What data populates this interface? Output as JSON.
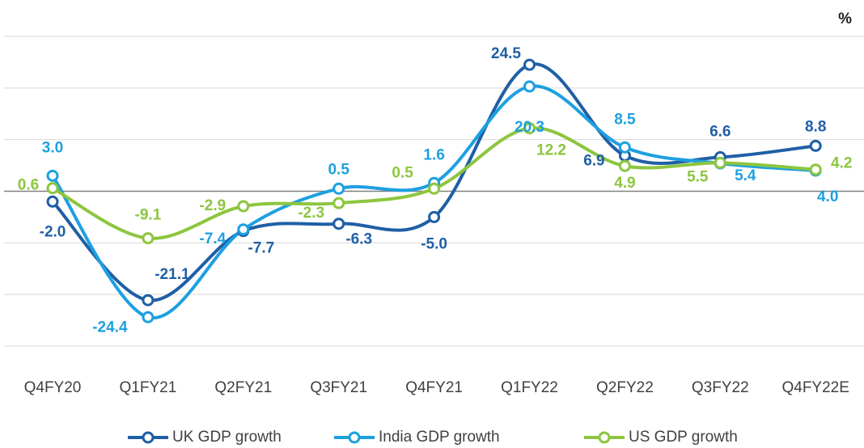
{
  "chart_data": {
    "type": "line",
    "y_label": "%",
    "categories": [
      "Q4FY20",
      "Q1FY21",
      "Q2FY21",
      "Q3FY21",
      "Q4FY21",
      "Q1FY22",
      "Q2FY22",
      "Q3FY22",
      "Q4FY22E"
    ],
    "series": [
      {
        "name": "UK GDP growth",
        "color": "#1f5fa6",
        "values": [
          -2,
          -21.1,
          -7.7,
          -6.3,
          -5,
          24.5,
          6.9,
          6.6,
          8.8
        ],
        "value_labels": [
          "-2.0",
          "-21.1",
          "-7.7",
          "-6.3",
          "-5.0",
          "24.5",
          "6.9",
          "6.6",
          "8.8"
        ]
      },
      {
        "name": "India GDP growth",
        "color": "#1ea0e0",
        "values": [
          3,
          -24.4,
          -7.4,
          0.5,
          1.6,
          20.3,
          8.5,
          5.4,
          4
        ],
        "value_labels": [
          "3.0",
          "-24.4",
          "-7.4",
          "0.5",
          "1.6",
          "20.3",
          "8.5",
          "5.4",
          "4.0"
        ]
      },
      {
        "name": "US GDP growth",
        "color": "#8cc63f",
        "values": [
          0.6,
          -9.1,
          -2.9,
          -2.3,
          0.5,
          12.2,
          4.9,
          5.5,
          4.2
        ],
        "value_labels": [
          "0.6",
          "-9.1",
          "-2.9",
          "-2.3",
          "0.5",
          "12.2",
          "4.9",
          "5.5",
          "4.2"
        ]
      }
    ],
    "ylim": [
      -30,
      30
    ],
    "yticks": [
      -30,
      -20,
      -10,
      0,
      10,
      20,
      30
    ],
    "grid": true,
    "legend": "bottom"
  }
}
